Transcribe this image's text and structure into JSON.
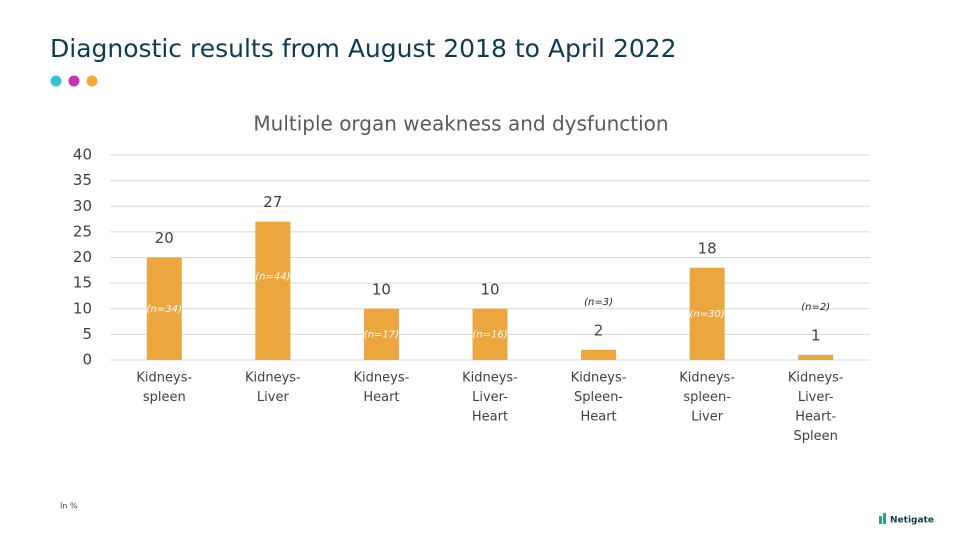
{
  "header": {
    "title": "Diagnostic results from August 2018 to April 2022"
  },
  "chart_data": {
    "type": "bar",
    "title": "Multiple organ weakness and dysfunction",
    "categories": [
      [
        "Kidneys-",
        "spleen"
      ],
      [
        "Kidneys-",
        "Liver"
      ],
      [
        "Kidneys-",
        "Heart"
      ],
      [
        "Kidneys-",
        "Liver-",
        "Heart"
      ],
      [
        "Kidneys-",
        "Spleen-",
        "Heart"
      ],
      [
        "Kidneys-",
        "spleen-",
        "Liver"
      ],
      [
        "Kidneys-",
        "Liver-",
        "Heart-",
        "Spleen"
      ]
    ],
    "values": [
      20,
      27,
      10,
      10,
      2,
      18,
      1
    ],
    "annotations": [
      "(n=34)",
      "(n=44)",
      "(n=17)",
      "(n=16)",
      "(n=3)",
      "(n=30)",
      "(n=2)"
    ],
    "color": "#eba63f",
    "ylim": [
      0,
      40
    ],
    "yticks": [
      0,
      5,
      10,
      15,
      20,
      25,
      30,
      35,
      40
    ],
    "grid": true
  },
  "footer": {
    "note": "In %",
    "logo": "Netigate"
  }
}
